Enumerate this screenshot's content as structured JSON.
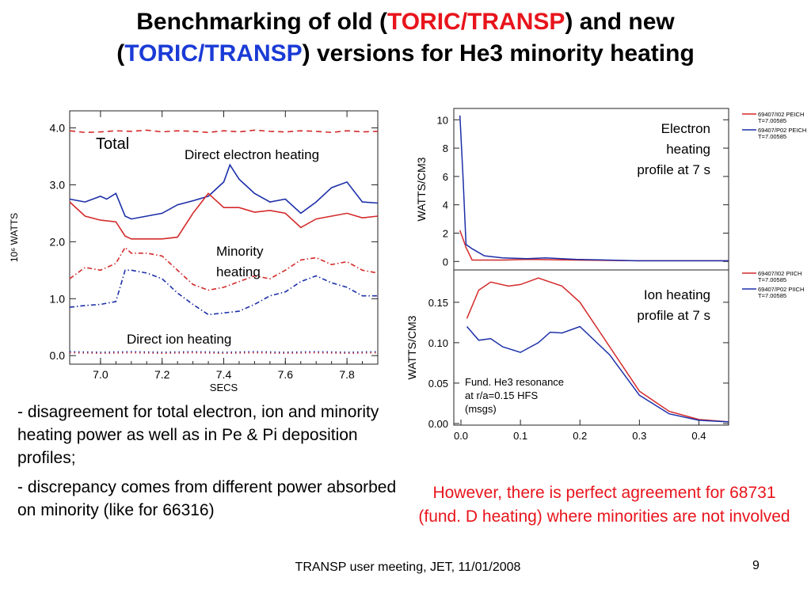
{
  "slide": {
    "title_part1": "Benchmarking of old (",
    "title_red": "TORIC/TRANSP",
    "title_part2": ") and new",
    "title_part3": "(",
    "title_blue": "TORIC/TRANSP",
    "title_part4": ") versions for He3 minority heating",
    "bullets": [
      "- disagreement for total electron, ion and minority heating power as well as in Pe & Pi deposition profiles;",
      "- discrepancy comes from different power absorbed on minority (like for 66316)"
    ],
    "note": "However, there is perfect agreement for 68731 (fund. D heating) where minorities are not involved",
    "footer": "TRANSP user meeting, JET, 11/01/2008",
    "page_number": "9"
  },
  "colors": {
    "old": "#d42a2a",
    "new": "#1c2fa8",
    "title_red": "#e8141c",
    "title_blue": "#1a3bd6"
  },
  "chart_data": [
    {
      "type": "line",
      "xlabel": "SECS",
      "ylabel": "10⁶ WATTS",
      "xticks": [
        "7.0",
        "7.2",
        "7.4",
        "7.6",
        "7.8"
      ],
      "yticks": [
        "0.0",
        "1.0",
        "2.0",
        "3.0",
        "4.0"
      ],
      "xlim": [
        6.9,
        7.9
      ],
      "ylim": [
        -0.15,
        4.3
      ],
      "annotations": [
        "Total",
        "Direct electron heating",
        "Minority heating",
        "Direct ion heating"
      ],
      "series": [
        {
          "group": "Total",
          "color": "old",
          "dash": "dash",
          "x": [
            6.9,
            6.95,
            7.0,
            7.05,
            7.1,
            7.15,
            7.2,
            7.25,
            7.3,
            7.35,
            7.4,
            7.45,
            7.5,
            7.55,
            7.6,
            7.65,
            7.7,
            7.75,
            7.8,
            7.85,
            7.9
          ],
          "values": [
            3.95,
            3.92,
            3.93,
            3.95,
            3.94,
            3.96,
            3.93,
            3.95,
            3.94,
            3.92,
            3.95,
            3.93,
            3.96,
            3.94,
            3.93,
            3.95,
            3.94,
            3.92,
            3.95,
            3.93,
            3.94
          ]
        },
        {
          "group": "Direct electron heating",
          "color": "new",
          "dash": "solid",
          "x": [
            6.9,
            6.95,
            7.0,
            7.02,
            7.05,
            7.08,
            7.1,
            7.15,
            7.2,
            7.25,
            7.3,
            7.35,
            7.4,
            7.42,
            7.45,
            7.48,
            7.5,
            7.55,
            7.6,
            7.65,
            7.7,
            7.75,
            7.8,
            7.85,
            7.9
          ],
          "values": [
            2.75,
            2.7,
            2.8,
            2.75,
            2.85,
            2.45,
            2.4,
            2.45,
            2.5,
            2.65,
            2.72,
            2.8,
            3.05,
            3.35,
            3.1,
            2.95,
            2.85,
            2.7,
            2.75,
            2.5,
            2.7,
            2.95,
            3.05,
            2.7,
            2.68
          ]
        },
        {
          "group": "Direct electron heating",
          "color": "old",
          "dash": "solid",
          "x": [
            6.9,
            6.95,
            7.0,
            7.05,
            7.08,
            7.1,
            7.15,
            7.2,
            7.25,
            7.3,
            7.35,
            7.4,
            7.45,
            7.5,
            7.55,
            7.6,
            7.65,
            7.7,
            7.75,
            7.8,
            7.85,
            7.9
          ],
          "values": [
            2.7,
            2.45,
            2.38,
            2.35,
            2.1,
            2.05,
            2.05,
            2.05,
            2.08,
            2.5,
            2.85,
            2.6,
            2.6,
            2.52,
            2.55,
            2.5,
            2.25,
            2.4,
            2.45,
            2.5,
            2.42,
            2.45
          ]
        },
        {
          "group": "Minority heating",
          "color": "old",
          "dash": "dashdot",
          "x": [
            6.9,
            6.95,
            7.0,
            7.05,
            7.08,
            7.1,
            7.15,
            7.2,
            7.25,
            7.3,
            7.35,
            7.4,
            7.45,
            7.5,
            7.55,
            7.6,
            7.65,
            7.7,
            7.75,
            7.8,
            7.85,
            7.9
          ],
          "values": [
            1.35,
            1.55,
            1.5,
            1.62,
            1.9,
            1.8,
            1.8,
            1.75,
            1.5,
            1.25,
            1.15,
            1.2,
            1.3,
            1.4,
            1.35,
            1.5,
            1.68,
            1.72,
            1.6,
            1.65,
            1.5,
            1.45
          ]
        },
        {
          "group": "Minority heating",
          "color": "new",
          "dash": "dashdot",
          "x": [
            6.9,
            6.95,
            7.0,
            7.05,
            7.08,
            7.1,
            7.15,
            7.2,
            7.25,
            7.3,
            7.35,
            7.4,
            7.45,
            7.5,
            7.55,
            7.6,
            7.65,
            7.7,
            7.75,
            7.8,
            7.85,
            7.9
          ],
          "values": [
            0.85,
            0.88,
            0.9,
            0.95,
            1.5,
            1.5,
            1.45,
            1.35,
            1.1,
            0.9,
            0.72,
            0.75,
            0.78,
            0.9,
            1.05,
            1.12,
            1.3,
            1.4,
            1.28,
            1.2,
            1.05,
            1.05
          ]
        },
        {
          "group": "Direct ion heating",
          "color": "old",
          "dash": "dot",
          "x": [
            6.9,
            7.0,
            7.1,
            7.2,
            7.3,
            7.4,
            7.5,
            7.6,
            7.7,
            7.8,
            7.9
          ],
          "values": [
            0.05,
            0.04,
            0.05,
            0.04,
            0.05,
            0.04,
            0.05,
            0.04,
            0.05,
            0.04,
            0.05
          ]
        },
        {
          "group": "Direct ion heating",
          "color": "new",
          "dash": "dot",
          "x": [
            6.9,
            7.0,
            7.1,
            7.2,
            7.3,
            7.4,
            7.5,
            7.6,
            7.7,
            7.8,
            7.9
          ],
          "values": [
            0.07,
            0.06,
            0.07,
            0.06,
            0.07,
            0.06,
            0.07,
            0.06,
            0.07,
            0.06,
            0.07
          ]
        }
      ]
    },
    {
      "type": "line",
      "xlabel": "",
      "ylabel": "WATTS/CM3",
      "yticks": [
        "0",
        "2",
        "4",
        "6",
        "8",
        "10"
      ],
      "xlim": [
        0.0,
        0.45
      ],
      "ylim": [
        -0.6,
        10.8
      ],
      "annotation": [
        "Electron",
        "heating",
        "profile at 7 s"
      ],
      "legend": [
        {
          "color": "old",
          "label": "69407/I02 PEICH",
          "sub": "T=7.00585"
        },
        {
          "color": "new",
          "label": "69407/P02 PEICH",
          "sub": "T=7.00585"
        }
      ],
      "series": [
        {
          "name": "69407/I02 PEICH",
          "color": "old",
          "x": [
            0.01,
            0.02,
            0.03,
            0.05,
            0.08,
            0.12,
            0.2,
            0.3,
            0.45
          ],
          "values": [
            2.2,
            1.0,
            0.1,
            0.1,
            0.1,
            0.15,
            0.1,
            0.05,
            0.05
          ]
        },
        {
          "name": "69407/P02 PEICH",
          "color": "new",
          "x": [
            0.01,
            0.015,
            0.02,
            0.03,
            0.05,
            0.08,
            0.12,
            0.15,
            0.2,
            0.3,
            0.45
          ],
          "values": [
            10.3,
            6.0,
            1.2,
            0.9,
            0.4,
            0.25,
            0.2,
            0.25,
            0.15,
            0.05,
            0.05
          ]
        }
      ]
    },
    {
      "type": "line",
      "xlabel": "",
      "ylabel": "WATTS/CM3",
      "xticks": [
        "0.0",
        "0.1",
        "0.2",
        "0.3",
        "0.4"
      ],
      "yticks": [
        "0.00",
        "0.05",
        "0.10",
        "0.15"
      ],
      "xlim": [
        -0.012,
        0.45
      ],
      "ylim": [
        -0.002,
        0.19
      ],
      "annotation": [
        "Ion heating",
        "profile at 7 s"
      ],
      "annotation2": [
        "Fund. He3 resonance",
        "at r/a=0.15 HFS",
        "(msgs)"
      ],
      "legend": [
        {
          "color": "old",
          "label": "69407/I02 PIICH",
          "sub": "T=7.00585"
        },
        {
          "color": "new",
          "label": "69407/P02 PIICH",
          "sub": "T=7.00585"
        }
      ],
      "series": [
        {
          "name": "69407/I02 PIICH",
          "color": "old",
          "x": [
            0.01,
            0.03,
            0.05,
            0.08,
            0.1,
            0.13,
            0.17,
            0.2,
            0.25,
            0.3,
            0.35,
            0.4,
            0.45
          ],
          "values": [
            0.13,
            0.165,
            0.175,
            0.17,
            0.172,
            0.18,
            0.17,
            0.15,
            0.095,
            0.04,
            0.015,
            0.005,
            0.002
          ]
        },
        {
          "name": "69407/P02 PIICH",
          "color": "new",
          "x": [
            0.01,
            0.03,
            0.05,
            0.07,
            0.1,
            0.13,
            0.15,
            0.17,
            0.2,
            0.25,
            0.3,
            0.35,
            0.4,
            0.45
          ],
          "values": [
            0.12,
            0.103,
            0.105,
            0.095,
            0.088,
            0.1,
            0.113,
            0.112,
            0.12,
            0.085,
            0.035,
            0.012,
            0.004,
            0.002
          ]
        }
      ]
    }
  ]
}
